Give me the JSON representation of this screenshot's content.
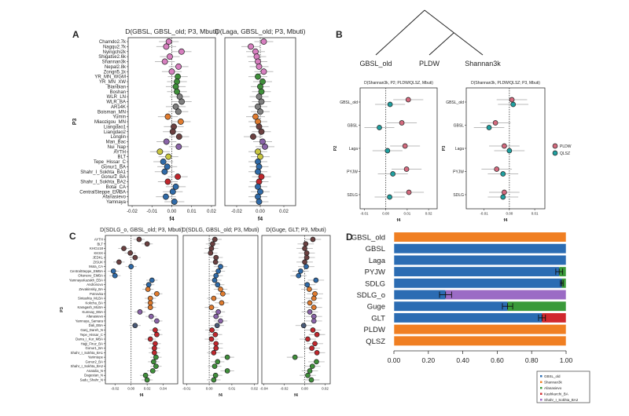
{
  "palette": {
    "pink": "#d77fbf",
    "green": "#3f8f3a",
    "grey": "#7f7f7f",
    "orange": "#e07b2e",
    "brown": "#6b4040",
    "purple": "#8a64a8",
    "yellow": "#c9c640",
    "blue": "#2f6aa8",
    "red": "#c0272d",
    "slate": "#4a5a78",
    "pldw": "#d46a7e",
    "qlsz": "#20a0a0",
    "d_orange": "#f07f22",
    "d_blue": "#2b6cb3",
    "d_green": "#3a9a3a",
    "d_red": "#d0282e",
    "d_purple": "#9b6bc5"
  },
  "panel_labels": {
    "a": "A",
    "b": "B",
    "c": "C",
    "d": "D"
  },
  "chart_data": [
    {
      "id": "A1",
      "type": "scatter",
      "subtype": "forest",
      "title": "D(GBSL, GBSL_old; P3, Mbuti)",
      "xlabel": "f4",
      "ylabel": "P3",
      "xlim": [
        -0.022,
        0.022
      ],
      "xticks": [
        -0.02,
        -0.01,
        0.0,
        0.01,
        0.02
      ],
      "xtick_labels": [
        "-0.02",
        "-0.01",
        "0.00",
        "0.01",
        "0.02"
      ],
      "ci_halfwidth": 0.005,
      "categories": [
        "Chamdo2.7k",
        "Nagqu2.7k",
        "Nyingchi2k",
        "Shigatse2.6k",
        "Shannan3k",
        "Nepal2.8k",
        "Zongri5.1k",
        "YR_MN_WGM",
        "YR_MN_XW",
        "Bianbian",
        "Boshan",
        "WLR_LN",
        "WLR_BA",
        "AR14K",
        "Boisman_MN",
        "Yumin",
        "Miaozigou_MN",
        "Liangdao1",
        "Liangdao2",
        "Longlin",
        "Man_Bac",
        "Nui_Nap",
        "AYTH",
        "BLT",
        "Tepe_Hissar_C",
        "Gonur1_BA",
        "Shahr_I_Sokhta_BA1",
        "Gonur2_BA",
        "Shahr_I_Sokhta_BA2",
        "Botai_CA",
        "CentralSteppe_EMBA",
        "Afanasievo",
        "Yamnaya"
      ],
      "groups": [
        "pink",
        "pink",
        "pink",
        "pink",
        "pink",
        "pink",
        "pink",
        "green",
        "green",
        "green",
        "green",
        "grey",
        "grey",
        "grey",
        "grey",
        "orange",
        "orange",
        "brown",
        "brown",
        "brown",
        "purple",
        "purple",
        "yellow",
        "yellow",
        "blue",
        "blue",
        "blue",
        "red",
        "red",
        "blue",
        "blue",
        "blue",
        "blue"
      ],
      "values": [
        -0.0015,
        -0.0028,
        0.0049,
        -0.001,
        -0.0035,
        0.0034,
        0.0,
        0.003,
        0.0026,
        0.002,
        0.0026,
        0.004,
        0.005,
        0.002,
        0.0033,
        -0.002,
        0.0045,
        0.001,
        0.0005,
        0.0037,
        -0.0027,
        0.0035,
        -0.006,
        -0.0017,
        -0.0043,
        -0.0023,
        -0.0036,
        0.003,
        -0.002,
        0.002,
        0.0005,
        -0.003,
        0.0013
      ]
    },
    {
      "id": "A2",
      "type": "scatter",
      "subtype": "forest",
      "title": "D(Laga, GBSL_old; P3, Mbuti)",
      "xlabel": "f4",
      "xlim": [
        -0.03,
        0.03
      ],
      "xticks": [
        -0.02,
        0.0,
        0.02
      ],
      "xtick_labels": [
        "-0.02",
        "0.00",
        "0.02"
      ],
      "ci_halfwidth": 0.008,
      "values": [
        0.003,
        -0.008,
        -0.004,
        -0.003,
        -0.002,
        -0.001,
        0.003,
        -0.002,
        0.002,
        0.0,
        0.001,
        -0.001,
        0.001,
        -0.002,
        0.0,
        -0.004,
        -0.002,
        -0.001,
        0.001,
        -0.006,
        0.002,
        0.004,
        -0.002,
        0.0,
        -0.002,
        -0.001,
        -0.002,
        0.001,
        -0.001,
        -0.002,
        0.0,
        -0.002,
        -0.001
      ]
    },
    {
      "id": "B_tree",
      "type": "tree",
      "leaves": [
        "GBSL_old",
        "PLDW",
        "Shannan3k"
      ]
    },
    {
      "id": "B1",
      "type": "scatter",
      "subtype": "forest",
      "title": "D(Shannan3k, P2; PLDW/QLSZ, Mbuti)",
      "xlabel": "f4",
      "ylabel": "P2",
      "xlim": [
        -0.012,
        0.024
      ],
      "xticks": [
        -0.01,
        0.0,
        0.01,
        0.02
      ],
      "xtick_labels": [
        "-0.01",
        "0.00",
        "0.01",
        "0.02"
      ],
      "ci_halfwidth": 0.007,
      "categories": [
        "GBSL_old",
        "GBSL",
        "Laga",
        "PYJW",
        "SDLG"
      ],
      "series": [
        {
          "name": "PLDW",
          "color_key": "pldw",
          "values": [
            0.0105,
            0.0075,
            0.009,
            0.0097,
            0.0108
          ]
        },
        {
          "name": "QLSZ",
          "color_key": "qlsz",
          "values": [
            0.002,
            -0.003,
            0.0008,
            0.0033,
            0.0018
          ]
        }
      ]
    },
    {
      "id": "B2",
      "type": "scatter",
      "subtype": "forest",
      "title": "D(Shannan3k, PLDW/QLSZ; P3, Mbuti)",
      "xlabel": "f4",
      "ylabel": "P3",
      "xlim": [
        -0.017,
        0.014
      ],
      "xticks": [
        -0.01,
        0.0,
        0.01
      ],
      "xtick_labels": [
        "-0.01",
        "0.00",
        "0.01"
      ],
      "ci_halfwidth": 0.006,
      "categories": [
        "GBSL_old",
        "GBSL",
        "Laga",
        "PYJW",
        "SDLG"
      ],
      "series": [
        {
          "name": "PLDW",
          "color_key": "pldw",
          "values": [
            0.001,
            -0.0055,
            -0.002,
            -0.005,
            -0.002
          ]
        },
        {
          "name": "QLSZ",
          "color_key": "qlsz",
          "values": [
            0.0015,
            -0.008,
            0.0,
            -0.0025,
            -0.0025
          ]
        }
      ],
      "legend": "right"
    },
    {
      "id": "C1",
      "type": "scatter",
      "subtype": "forest",
      "title": "D(SDLG_o, GBSL_old; P3, Mbuti)",
      "xlabel": "f4",
      "ylabel": "P3",
      "xlim": [
        -0.032,
        0.058
      ],
      "xticks": [
        -0.02,
        0.0,
        0.02,
        0.04
      ],
      "xtick_labels": [
        "-0.02",
        "0.00",
        "0.02",
        "0.04"
      ],
      "ci_halfwidth": 0.007,
      "categories": [
        "AYTH",
        "BLT",
        "KHCU18",
        "KKSX",
        "JEDKL",
        "ZISUK",
        "Mota_CA",
        "CentralSteppe_EMBA",
        "Okunevo_EMBA",
        "YamnayaKazakh_EBA",
        "Andronovo",
        "Zevakinskiy_BA",
        "Potrovka",
        "Sintashta_MLBA",
        "Kokcha_BA",
        "Karagash_MLBA",
        "Kumsay_EBA",
        "Afanasievo",
        "Yamnaya_Samara",
        "Dali_EBA",
        "Ganj_Dareh_N",
        "Tepe_Hissar_C",
        "Darra_i_Kur_MBA",
        "Hajji_Firuz_BA",
        "Gonur1_BA",
        "Shahr_I_Sokhta_BA1",
        "Yarimtepe",
        "Gonur2_BA",
        "Shahr_I_Sokhta_BA2",
        "Anatolia_N",
        "Dagestan_N",
        "Sadu_Shahr_N"
      ],
      "groups": [
        "brown",
        "brown",
        "brown",
        "brown",
        "brown",
        "brown",
        "blue",
        "blue",
        "blue",
        "blue",
        "blue",
        "orange",
        "orange",
        "orange",
        "orange",
        "orange",
        "purple",
        "purple",
        "purple",
        "slate",
        "red",
        "red",
        "red",
        "red",
        "red",
        "red",
        "green",
        "green",
        "green",
        "green",
        "green",
        "green"
      ],
      "values": [
        0.01,
        0.02,
        -0.009,
        -0.001,
        0.005,
        -0.015,
        0.0,
        -0.022,
        -0.02,
        0.026,
        0.022,
        0.021,
        0.032,
        0.024,
        0.024,
        0.024,
        0.011,
        0.025,
        0.032,
        0.005,
        0.03,
        0.032,
        0.024,
        0.03,
        0.029,
        0.029,
        0.031,
        0.028,
        0.031,
        0.027,
        0.018,
        0.02
      ]
    },
    {
      "id": "C2",
      "type": "scatter",
      "subtype": "forest",
      "title": "D(SDLG, GBSL_old; P3, Mbuti)",
      "xlabel": "f4",
      "xlim": [
        -0.0115,
        0.0215
      ],
      "xticks": [
        -0.01,
        0.0,
        0.01,
        0.02
      ],
      "xtick_labels": [
        "-0.01",
        "0.00",
        "0.01",
        "0.02"
      ],
      "ci_halfwidth": 0.003,
      "values": [
        0.0025,
        0.0015,
        0.001,
        0.0006,
        0.003,
        0.0028,
        0.005,
        0.004,
        0.003,
        0.0024,
        0.0037,
        0.005,
        0.006,
        0.002,
        0.0055,
        0.001,
        0.004,
        0.003,
        0.005,
        0.0035,
        0.0012,
        0.0027,
        0.001,
        0.003,
        0.003,
        0.002,
        0.008,
        0.0037,
        0.0024,
        0.008,
        0.0028,
        0.002
      ]
    },
    {
      "id": "C3",
      "type": "scatter",
      "subtype": "forest",
      "title": "D(Guge, GLT; P3, Mbuti)",
      "xlabel": "f4",
      "xlim": [
        -0.042,
        0.025
      ],
      "xticks": [
        -0.04,
        -0.02,
        0.0,
        0.02
      ],
      "xtick_labels": [
        "-0.04",
        "-0.02",
        "0.00",
        "0.02"
      ],
      "ci_halfwidth": 0.008,
      "values": [
        0.008,
        0.001,
        0.0,
        0.002,
        0.002,
        0.0,
        0.0015,
        -0.004,
        -0.006,
        0.011,
        0.0025,
        0.0045,
        0.01,
        0.009,
        0.005,
        0.009,
        0.005,
        0.009,
        0.009,
        -0.001,
        0.008,
        0.012,
        0.003,
        0.01,
        0.007,
        0.012,
        -0.0095,
        0.0115,
        0.0075,
        0.005,
        0.003,
        0.0065
      ]
    },
    {
      "id": "D",
      "type": "bar",
      "subtype": "stacked-horizontal",
      "categories": [
        "GBSL_old",
        "GBSL",
        "Laga",
        "PYJW",
        "SDLG",
        "SDLG_o",
        "Guge",
        "GLT",
        "PLDW",
        "QLSZ"
      ],
      "xlim": [
        0,
        1
      ],
      "xticks": [
        0,
        0.2,
        0.4,
        0.6,
        0.8,
        1.0
      ],
      "xtick_labels": [
        "0.00",
        "0.20",
        "0.40",
        "0.60",
        "0.80",
        "1.00"
      ],
      "rows": [
        {
          "segments": [
            {
              "key": "d_orange",
              "value": 1.0
            }
          ]
        },
        {
          "segments": [
            {
              "key": "d_blue",
              "value": 1.0
            }
          ]
        },
        {
          "segments": [
            {
              "key": "d_blue",
              "value": 1.0
            }
          ]
        },
        {
          "segments": [
            {
              "key": "d_blue",
              "value": 0.96
            },
            {
              "key": "d_green",
              "value": 0.04
            }
          ],
          "error": 0.02
        },
        {
          "segments": [
            {
              "key": "d_blue",
              "value": 0.975
            },
            {
              "key": "d_green",
              "value": 0.025
            }
          ],
          "error": 0.008
        },
        {
          "segments": [
            {
              "key": "d_blue",
              "value": 0.3
            },
            {
              "key": "d_purple",
              "value": 0.7
            }
          ],
          "error": 0.035
        },
        {
          "segments": [
            {
              "key": "d_blue",
              "value": 0.66
            },
            {
              "key": "d_green",
              "value": 0.34
            }
          ],
          "error": 0.03
        },
        {
          "segments": [
            {
              "key": "d_blue",
              "value": 0.86
            },
            {
              "key": "d_red",
              "value": 0.14
            }
          ],
          "error": 0.02
        },
        {
          "segments": [
            {
              "key": "d_orange",
              "value": 1.0
            }
          ]
        },
        {
          "segments": [
            {
              "key": "d_orange",
              "value": 1.0
            }
          ]
        }
      ],
      "legend": {
        "placement": "bottom-right",
        "entries": [
          {
            "name": "GBSL_old",
            "color_key": "d_blue"
          },
          {
            "name": "Shannan3k",
            "color_key": "d_orange"
          },
          {
            "name": "Afanasievo",
            "color_key": "d_green"
          },
          {
            "name": "Kashkarchi_BA",
            "color_key": "d_red"
          },
          {
            "name": "Shahr_I_Sokhta_BA2",
            "color_key": "d_purple"
          }
        ]
      }
    }
  ]
}
